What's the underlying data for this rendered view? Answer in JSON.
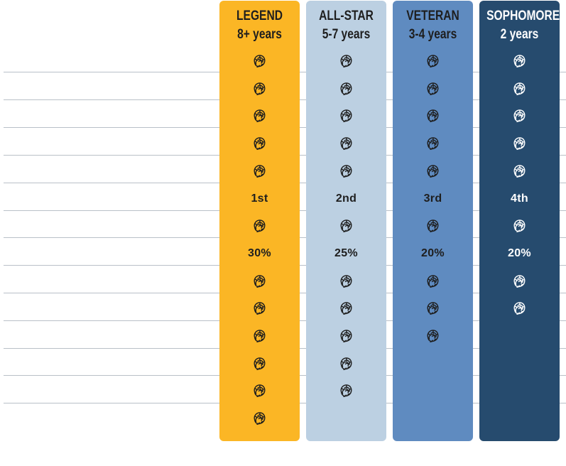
{
  "colors": {
    "gridline": "#b9c0c8",
    "icon_dark": "#1e1e1e",
    "icon_light": "#ffffff"
  },
  "icon": "cabbage-icon",
  "row_count": 14,
  "columns": [
    {
      "key": "legend",
      "title": "LEGEND",
      "subtitle": "8+ years",
      "bg": "#fbb625",
      "text_color": "#1e1e1e",
      "icon_variant": "dark",
      "cells": [
        "icon",
        "icon",
        "icon",
        "icon",
        "icon",
        "1st",
        "icon",
        "30%",
        "icon",
        "icon",
        "icon",
        "icon",
        "icon",
        "icon"
      ]
    },
    {
      "key": "all-star",
      "title": "ALL-STAR",
      "subtitle": "5-7 years",
      "bg": "#bcd0e2",
      "text_color": "#1e1e1e",
      "icon_variant": "dark",
      "cells": [
        "icon",
        "icon",
        "icon",
        "icon",
        "icon",
        "2nd",
        "icon",
        "25%",
        "icon",
        "icon",
        "icon",
        "icon",
        "icon",
        ""
      ]
    },
    {
      "key": "veteran",
      "title": "VETERAN",
      "subtitle": "3-4 years",
      "bg": "#5f8bc0",
      "text_color": "#1e1e1e",
      "icon_variant": "dark",
      "cells": [
        "icon",
        "icon",
        "icon",
        "icon",
        "icon",
        "3rd",
        "icon",
        "20%",
        "icon",
        "icon",
        "icon",
        "",
        "",
        ""
      ]
    },
    {
      "key": "sophomore",
      "title": "SOPHOMORE",
      "subtitle": "2 years",
      "bg": "#264b6e",
      "text_color": "#ffffff",
      "icon_variant": "light",
      "cells": [
        "icon",
        "icon",
        "icon",
        "icon",
        "icon",
        "4th",
        "icon",
        "20%",
        "icon",
        "icon",
        "",
        "",
        "",
        ""
      ]
    }
  ]
}
